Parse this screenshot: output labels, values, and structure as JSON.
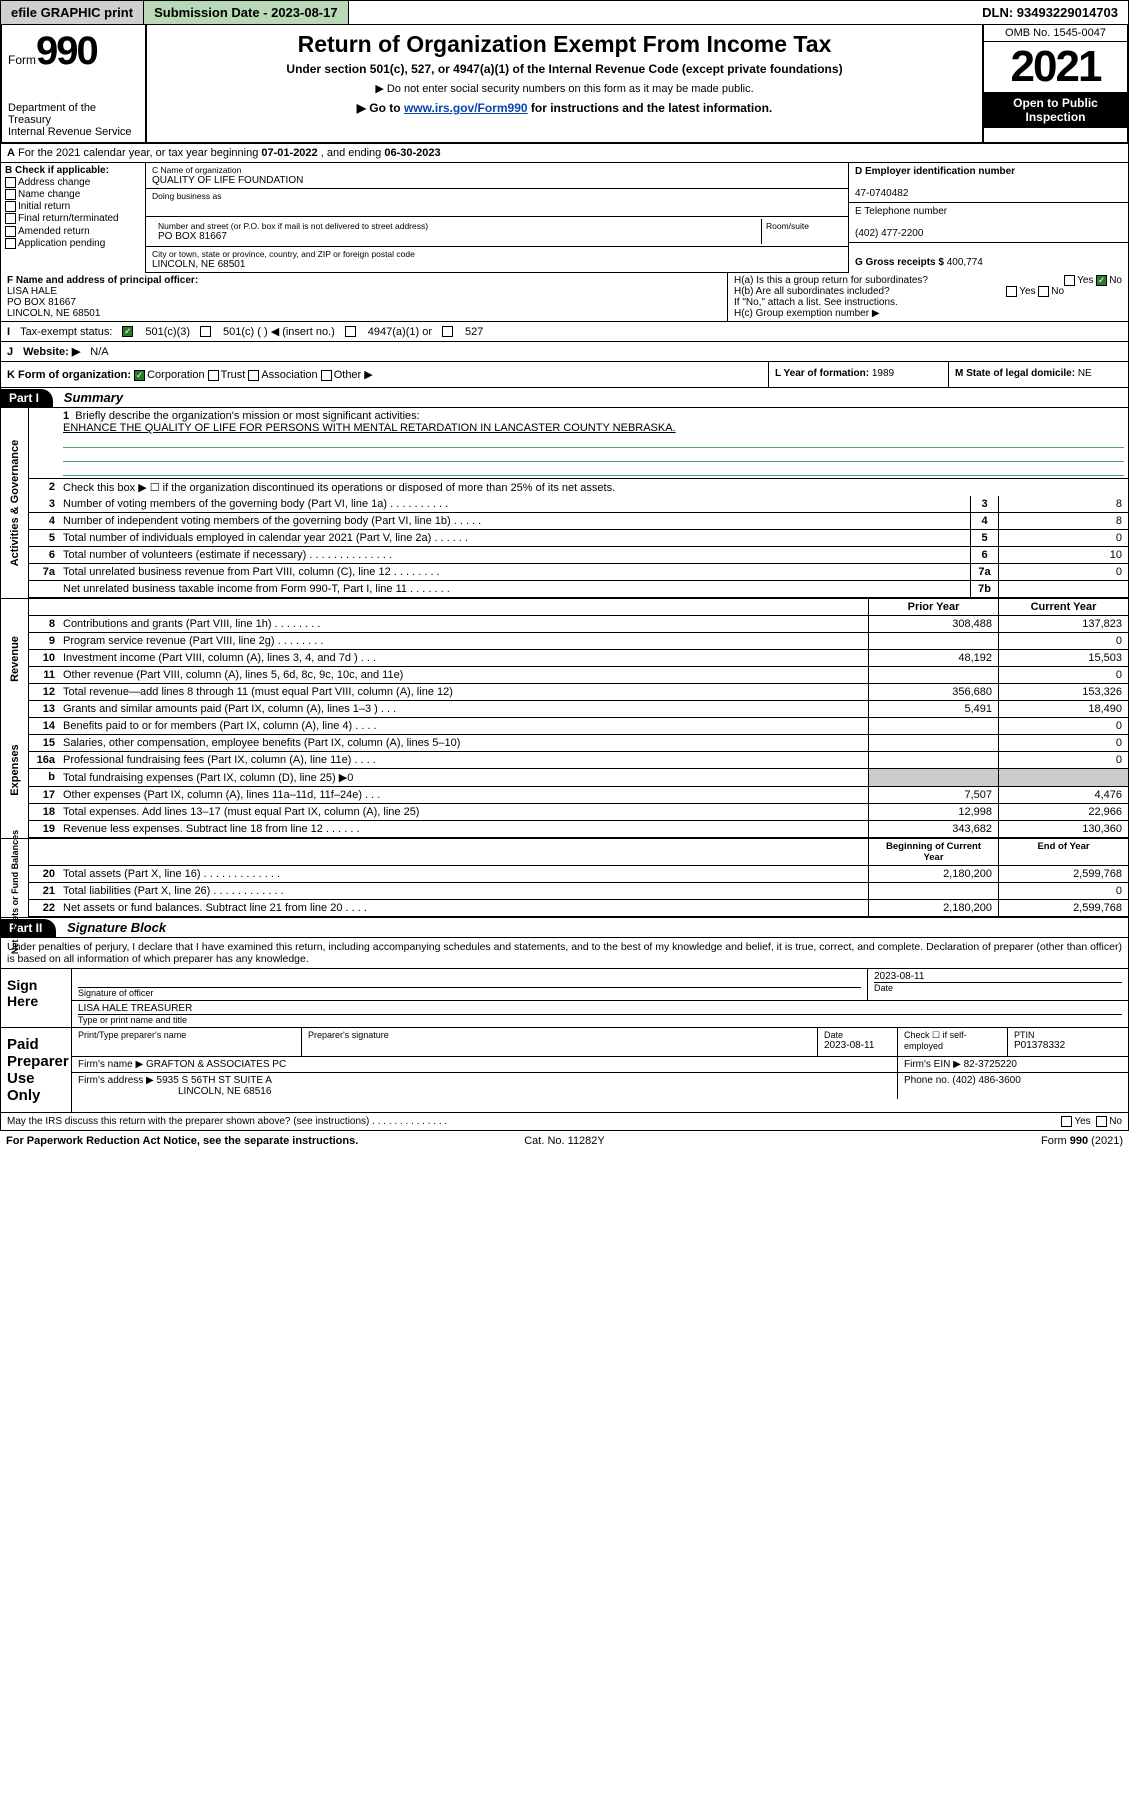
{
  "topbar": {
    "efile": "efile GRAPHIC print",
    "submission_label": "Submission Date - 2023-08-17",
    "dln_label": "DLN: 93493229014703"
  },
  "header": {
    "form_word": "Form",
    "form_num": "990",
    "dept": "Department of the Treasury",
    "irs": "Internal Revenue Service",
    "title": "Return of Organization Exempt From Income Tax",
    "sub1": "Under section 501(c), 527, or 4947(a)(1) of the Internal Revenue Code (except private foundations)",
    "sub2": "▶ Do not enter social security numbers on this form as it may be made public.",
    "sub3_pre": "▶ Go to ",
    "sub3_link": "www.irs.gov/Form990",
    "sub3_post": " for instructions and the latest information.",
    "omb": "OMB No. 1545-0047",
    "year": "2021",
    "inspection": "Open to Public Inspection"
  },
  "rowA": {
    "label_a": "A",
    "text": "For the 2021 calendar year, or tax year beginning ",
    "begin": "07-01-2022",
    "mid": " , and ending ",
    "end": "06-30-2023"
  },
  "colB": {
    "label": "B Check if applicable:",
    "opts": [
      "Address change",
      "Name change",
      "Initial return",
      "Final return/terminated",
      "Amended return",
      "Application pending"
    ]
  },
  "colC": {
    "name_lbl": "C Name of organization",
    "name": "QUALITY OF LIFE FOUNDATION",
    "dba_lbl": "Doing business as",
    "addr_lbl": "Number and street (or P.O. box if mail is not delivered to street address)",
    "room_lbl": "Room/suite",
    "addr": "PO BOX 81667",
    "city_lbl": "City or town, state or province, country, and ZIP or foreign postal code",
    "city": "LINCOLN, NE  68501"
  },
  "colD": {
    "d_lbl": "D Employer identification number",
    "d_val": "47-0740482",
    "e_lbl": "E Telephone number",
    "e_val": "(402) 477-2200",
    "g_lbl": "G Gross receipts $ ",
    "g_val": "400,774"
  },
  "rowF": {
    "f_lbl": "F Name and address of principal officer:",
    "f_name": "LISA HALE",
    "f_addr1": "PO BOX 81667",
    "f_addr2": "LINCOLN, NE  68501",
    "ha": "H(a)  Is this a group return for subordinates?",
    "hb": "H(b)  Are all subordinates included?",
    "hnote": "If \"No,\" attach a list. See instructions.",
    "hc": "H(c)  Group exemption number ▶",
    "yes": "Yes",
    "no": "No"
  },
  "rowI": {
    "lbl": "I",
    "txt": "Tax-exempt status:",
    "o1": "501(c)(3)",
    "o2": "501(c) (   ) ◀ (insert no.)",
    "o3": "4947(a)(1) or",
    "o4": "527"
  },
  "rowJ": {
    "lbl": "J",
    "txt": "Website: ▶",
    "val": "N/A"
  },
  "rowK": {
    "lbl": "K Form of organization:",
    "o1": "Corporation",
    "o2": "Trust",
    "o3": "Association",
    "o4": "Other ▶",
    "l_lbl": "L Year of formation: ",
    "l_val": "1989",
    "m_lbl": "M State of legal domicile: ",
    "m_val": "NE"
  },
  "part1": {
    "bar": "Part I",
    "title": "Summary"
  },
  "mission": {
    "num": "1",
    "lbl": "Briefly describe the organization's mission or most significant activities:",
    "text": "ENHANCE THE QUALITY OF LIFE FOR PERSONS WITH MENTAL RETARDATION IN LANCASTER COUNTY NEBRASKA."
  },
  "gov": {
    "label": "Activities & Governance",
    "l2": "Check this box ▶ ☐  if the organization discontinued its operations or disposed of more than 25% of its net assets.",
    "rows": [
      {
        "n": "3",
        "d": "Number of voting members of the governing body (Part VI, line 1a)  .  .  .  .  .  .  .  .  .  .",
        "box": "3",
        "v": "8"
      },
      {
        "n": "4",
        "d": "Number of independent voting members of the governing body (Part VI, line 1b)  .  .  .  .  .",
        "box": "4",
        "v": "8"
      },
      {
        "n": "5",
        "d": "Total number of individuals employed in calendar year 2021 (Part V, line 2a)  .  .  .  .  .  .",
        "box": "5",
        "v": "0"
      },
      {
        "n": "6",
        "d": "Total number of volunteers (estimate if necessary)  .  .  .  .  .  .  .  .  .  .  .  .  .  .",
        "box": "6",
        "v": "10"
      },
      {
        "n": "7a",
        "d": "Total unrelated business revenue from Part VIII, column (C), line 12  .  .  .  .  .  .  .  .",
        "box": "7a",
        "v": "0"
      },
      {
        "n": "",
        "d": "Net unrelated business taxable income from Form 990-T, Part I, line 11  .  .  .  .  .  .  .",
        "box": "7b",
        "v": ""
      }
    ]
  },
  "colhdr": {
    "prior": "Prior Year",
    "current": "Current Year",
    "boy": "Beginning of Current Year",
    "eoy": "End of Year"
  },
  "rev": {
    "label": "Revenue",
    "rows": [
      {
        "n": "8",
        "d": "Contributions and grants (Part VIII, line 1h)  .  .  .  .  .  .  .  .",
        "p": "308,488",
        "c": "137,823"
      },
      {
        "n": "9",
        "d": "Program service revenue (Part VIII, line 2g)  .  .  .  .  .  .  .  .",
        "p": "",
        "c": "0"
      },
      {
        "n": "10",
        "d": "Investment income (Part VIII, column (A), lines 3, 4, and 7d )  .  .  .",
        "p": "48,192",
        "c": "15,503"
      },
      {
        "n": "11",
        "d": "Other revenue (Part VIII, column (A), lines 5, 6d, 8c, 9c, 10c, and 11e)",
        "p": "",
        "c": "0"
      },
      {
        "n": "12",
        "d": "Total revenue—add lines 8 through 11 (must equal Part VIII, column (A), line 12)",
        "p": "356,680",
        "c": "153,326"
      }
    ]
  },
  "exp": {
    "label": "Expenses",
    "rows": [
      {
        "n": "13",
        "d": "Grants and similar amounts paid (Part IX, column (A), lines 1–3 )  .  .  .",
        "p": "5,491",
        "c": "18,490"
      },
      {
        "n": "14",
        "d": "Benefits paid to or for members (Part IX, column (A), line 4)  .  .  .  .",
        "p": "",
        "c": "0"
      },
      {
        "n": "15",
        "d": "Salaries, other compensation, employee benefits (Part IX, column (A), lines 5–10)",
        "p": "",
        "c": "0"
      },
      {
        "n": "16a",
        "d": "Professional fundraising fees (Part IX, column (A), line 11e)  .  .  .  .",
        "p": "",
        "c": "0"
      },
      {
        "n": "b",
        "d": "Total fundraising expenses (Part IX, column (D), line 25) ▶0",
        "p": "GREY",
        "c": "GREY"
      },
      {
        "n": "17",
        "d": "Other expenses (Part IX, column (A), lines 11a–11d, 11f–24e)  .  .  .",
        "p": "7,507",
        "c": "4,476"
      },
      {
        "n": "18",
        "d": "Total expenses. Add lines 13–17 (must equal Part IX, column (A), line 25)",
        "p": "12,998",
        "c": "22,966"
      },
      {
        "n": "19",
        "d": "Revenue less expenses. Subtract line 18 from line 12  .  .  .  .  .  .",
        "p": "343,682",
        "c": "130,360"
      }
    ]
  },
  "net": {
    "label": "Net Assets or Fund Balances",
    "rows": [
      {
        "n": "20",
        "d": "Total assets (Part X, line 16)  .  .  .  .  .  .  .  .  .  .  .  .  .",
        "p": "2,180,200",
        "c": "2,599,768"
      },
      {
        "n": "21",
        "d": "Total liabilities (Part X, line 26)  .  .  .  .  .  .  .  .  .  .  .  .",
        "p": "",
        "c": "0"
      },
      {
        "n": "22",
        "d": "Net assets or fund balances. Subtract line 21 from line 20  .  .  .  .",
        "p": "2,180,200",
        "c": "2,599,768"
      }
    ]
  },
  "part2": {
    "bar": "Part II",
    "title": "Signature Block"
  },
  "sig": {
    "para": "Under penalties of perjury, I declare that I have examined this return, including accompanying schedules and statements, and to the best of my knowledge and belief, it is true, correct, and complete. Declaration of preparer (other than officer) is based on all information of which preparer has any knowledge.",
    "sign_here": "Sign Here",
    "sig_officer": "Signature of officer",
    "date": "Date",
    "sig_date": "2023-08-11",
    "name_title": "LISA HALE  TREASURER",
    "name_title_lbl": "Type or print name and title",
    "paid": "Paid Preparer Use Only",
    "pt_name_lbl": "Print/Type preparer's name",
    "pt_sig_lbl": "Preparer's signature",
    "pt_date_lbl": "Date",
    "pt_date": "2023-08-11",
    "pt_check": "Check ☐ if self-employed",
    "ptin_lbl": "PTIN",
    "ptin": "P01378332",
    "firm_name_lbl": "Firm's name    ▶",
    "firm_name": "GRAFTON & ASSOCIATES PC",
    "firm_ein_lbl": "Firm's EIN ▶",
    "firm_ein": "82-3725220",
    "firm_addr_lbl": "Firm's address ▶",
    "firm_addr1": "5935 S 56TH ST SUITE A",
    "firm_addr2": "LINCOLN, NE  68516",
    "phone_lbl": "Phone no. ",
    "phone": "(402) 486-3600",
    "discuss": "May the IRS discuss this return with the preparer shown above? (see instructions)  .  .  .  .  .  .  .  .  .  .  .  .  .  .",
    "yes": "Yes",
    "no": "No"
  },
  "footer": {
    "left": "For Paperwork Reduction Act Notice, see the separate instructions.",
    "center": "Cat. No. 11282Y",
    "right": "Form 990 (2021)"
  }
}
